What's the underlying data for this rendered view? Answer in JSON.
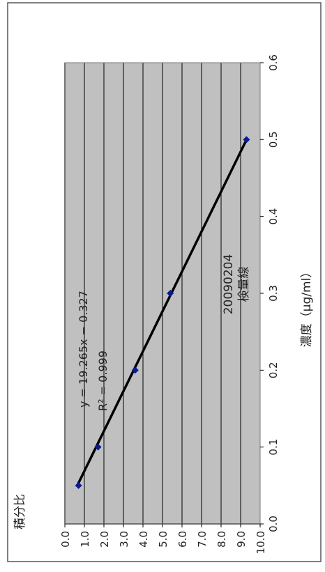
{
  "chart_data": {
    "type": "scatter",
    "title_line1": "20090204",
    "title_line2": "検量線",
    "xlabel": "濃度（μg/ml）",
    "ylabel": "積分比",
    "x_ticks": [
      "0.0",
      "0.1",
      "0.2",
      "0.3",
      "0.4",
      "0.5",
      "0.6"
    ],
    "y_ticks": [
      "0.0",
      "1.0",
      "2.0",
      "3.0",
      "4.0",
      "5.0",
      "6.0",
      "7.0",
      "8.0",
      "9.0",
      "10.0"
    ],
    "xlim": [
      0,
      0.6
    ],
    "ylim": [
      0,
      10
    ],
    "grid": true,
    "points": [
      {
        "x": 0.05,
        "y": 0.7
      },
      {
        "x": 0.1,
        "y": 1.7
      },
      {
        "x": 0.2,
        "y": 3.6
      },
      {
        "x": 0.3,
        "y": 5.4
      },
      {
        "x": 0.5,
        "y": 9.3
      }
    ],
    "trendline": {
      "slope": 19.265,
      "intercept": -0.327,
      "x_start": 0.05,
      "x_end": 0.5
    },
    "equation": "y = 19.265x − 0.327",
    "r2_label": "R² = 0.999",
    "colors": {
      "plot_bg": "#c0c0c0",
      "grid": "#000000",
      "marker": "#0b1a8c",
      "line": "#000000"
    }
  }
}
